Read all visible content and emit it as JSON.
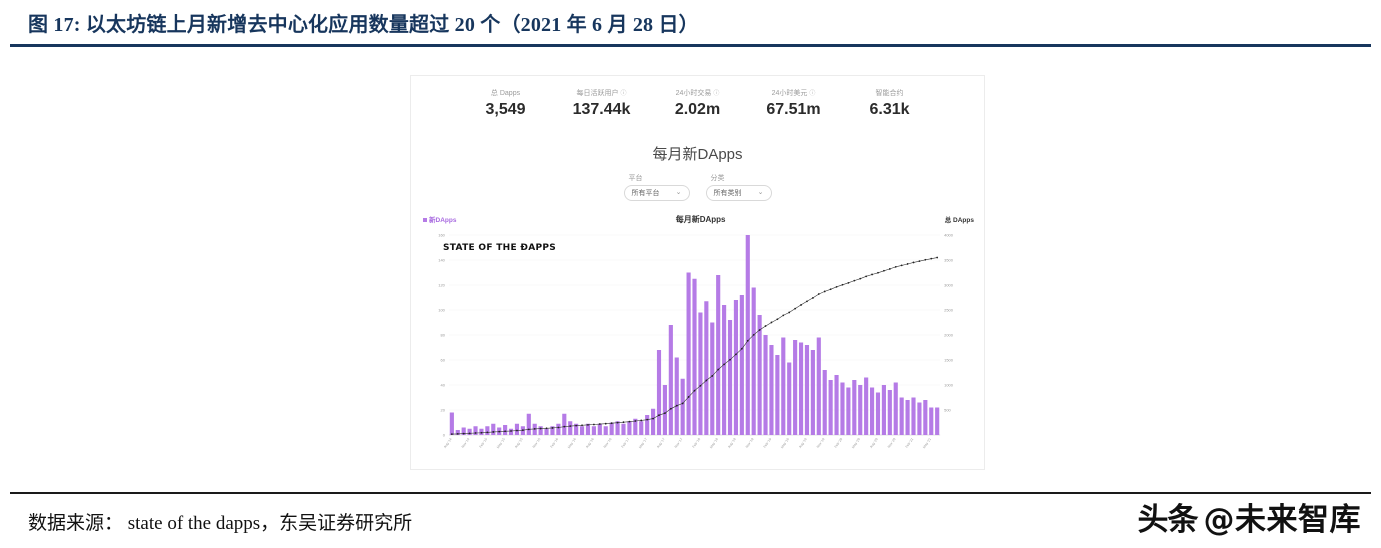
{
  "figure": {
    "caption": "图 17:  以太坊链上月新增去中心化应用数量超过 20 个（2021 年 6 月 28 日）",
    "source": "数据来源： state of the dapps，东吴证券研究所",
    "watermark": {
      "brand": "头条",
      "handle": "@未来智库"
    }
  },
  "icons": {
    "info": "ⓘ",
    "chevron_down": "⌄"
  },
  "dapp_site": {
    "logo": "STATE OF THE ÐAPPS",
    "stats": [
      {
        "label": "总 Dapps",
        "value": "3,549"
      },
      {
        "label": "每日活跃用户",
        "value": "137.44k"
      },
      {
        "label": "24小时交易",
        "value": "2.02m"
      },
      {
        "label": "24小时美元",
        "value": "67.51m"
      },
      {
        "label": "智能合约",
        "value": "6.31k"
      }
    ],
    "section_title": "每月新DApps",
    "filters": [
      {
        "label": "平台",
        "value": "所有平台"
      },
      {
        "label": "分类",
        "value": "所有类别"
      }
    ],
    "chart_header": {
      "left_legend": "新DApps",
      "title": "每月新DApps",
      "right_legend": "总 DApps"
    }
  },
  "chart_data": {
    "type": "bar",
    "title": "每月新DApps",
    "note": "Purple bars = new DApps per month (left axis). Black dotted line = cumulative total DApps (right axis), ending at 3,549.",
    "categories": [
      "Aug '14",
      "Sep '14",
      "Oct '14",
      "Nov '14",
      "Dec '14",
      "Jan '15",
      "Feb '15",
      "Mar '15",
      "Apr '15",
      "May '15",
      "Jun '15",
      "Jul '15",
      "Aug '15",
      "Sep '15",
      "Oct '15",
      "Nov '15",
      "Dec '15",
      "Jan '16",
      "Feb '16",
      "Mar '16",
      "Apr '16",
      "May '16",
      "Jun '16",
      "Jul '16",
      "Aug '16",
      "Sep '16",
      "Oct '16",
      "Nov '16",
      "Dec '16",
      "Jan '17",
      "Feb '17",
      "Mar '17",
      "Apr '17",
      "May '17",
      "Jun '17",
      "Jul '17",
      "Aug '17",
      "Sep '17",
      "Oct '17",
      "Nov '17",
      "Dec '17",
      "Jan '18",
      "Feb '18",
      "Mar '18",
      "Apr '18",
      "May '18",
      "Jun '18",
      "Jul '18",
      "Aug '18",
      "Sep '18",
      "Oct '18",
      "Nov '18",
      "Dec '18",
      "Jan '19",
      "Feb '19",
      "Mar '19",
      "Apr '19",
      "May '19",
      "Jun '19",
      "Jul '19",
      "Aug '19",
      "Sep '19",
      "Oct '19",
      "Nov '19",
      "Dec '19",
      "Jan '20",
      "Feb '20",
      "Mar '20",
      "Apr '20",
      "May '20",
      "Jun '20",
      "Jul '20",
      "Aug '20",
      "Sep '20",
      "Oct '20",
      "Nov '20",
      "Dec '20",
      "Jan '21",
      "Feb '21",
      "Mar '21",
      "Apr '21",
      "May '21",
      "Jun '21"
    ],
    "series": [
      {
        "name": "新DApps",
        "type": "bar",
        "axis": "left",
        "color": "#b57be6",
        "values": [
          18,
          4,
          6,
          5,
          7,
          5,
          7,
          9,
          6,
          8,
          5,
          9,
          7,
          17,
          9,
          7,
          5,
          7,
          9,
          17,
          11,
          9,
          7,
          9,
          7,
          9,
          7,
          10,
          11,
          9,
          11,
          13,
          11,
          16,
          21,
          68,
          40,
          88,
          62,
          45,
          130,
          125,
          98,
          107,
          90,
          128,
          104,
          92,
          108,
          112,
          160,
          118,
          96,
          80,
          72,
          64,
          78,
          58,
          76,
          74,
          72,
          68,
          78,
          52,
          44,
          48,
          42,
          38,
          44,
          40,
          46,
          38,
          34,
          40,
          36,
          42,
          30,
          28,
          30,
          26,
          28,
          22,
          22
        ]
      },
      {
        "name": "总 DApps",
        "type": "line",
        "axis": "right",
        "color": "#333333",
        "cumulative_of": "新DApps",
        "final_total": 3549
      }
    ],
    "left_axis": {
      "min": 0,
      "max": 160,
      "step": 20
    },
    "right_axis": {
      "min": 0,
      "max": 4000,
      "step": 500,
      "label": "总 DApps"
    },
    "x_tick_every": 3,
    "grid": true,
    "legend_position": "top"
  }
}
